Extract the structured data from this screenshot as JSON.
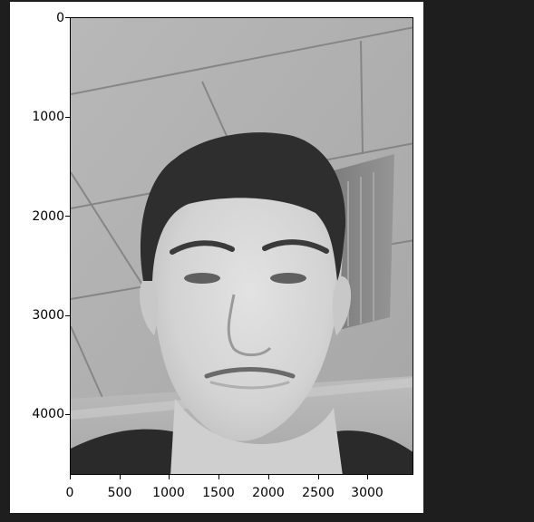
{
  "figure": {
    "x_ticks": [
      "0",
      "500",
      "1000",
      "1500",
      "2000",
      "2500",
      "3000"
    ],
    "y_ticks": [
      "0",
      "1000",
      "2000",
      "3000",
      "4000"
    ],
    "x_range": [
      0,
      3456
    ],
    "y_range": [
      0,
      4608
    ],
    "colormap": "grayscale"
  },
  "image": {
    "content": "selfie"
  }
}
